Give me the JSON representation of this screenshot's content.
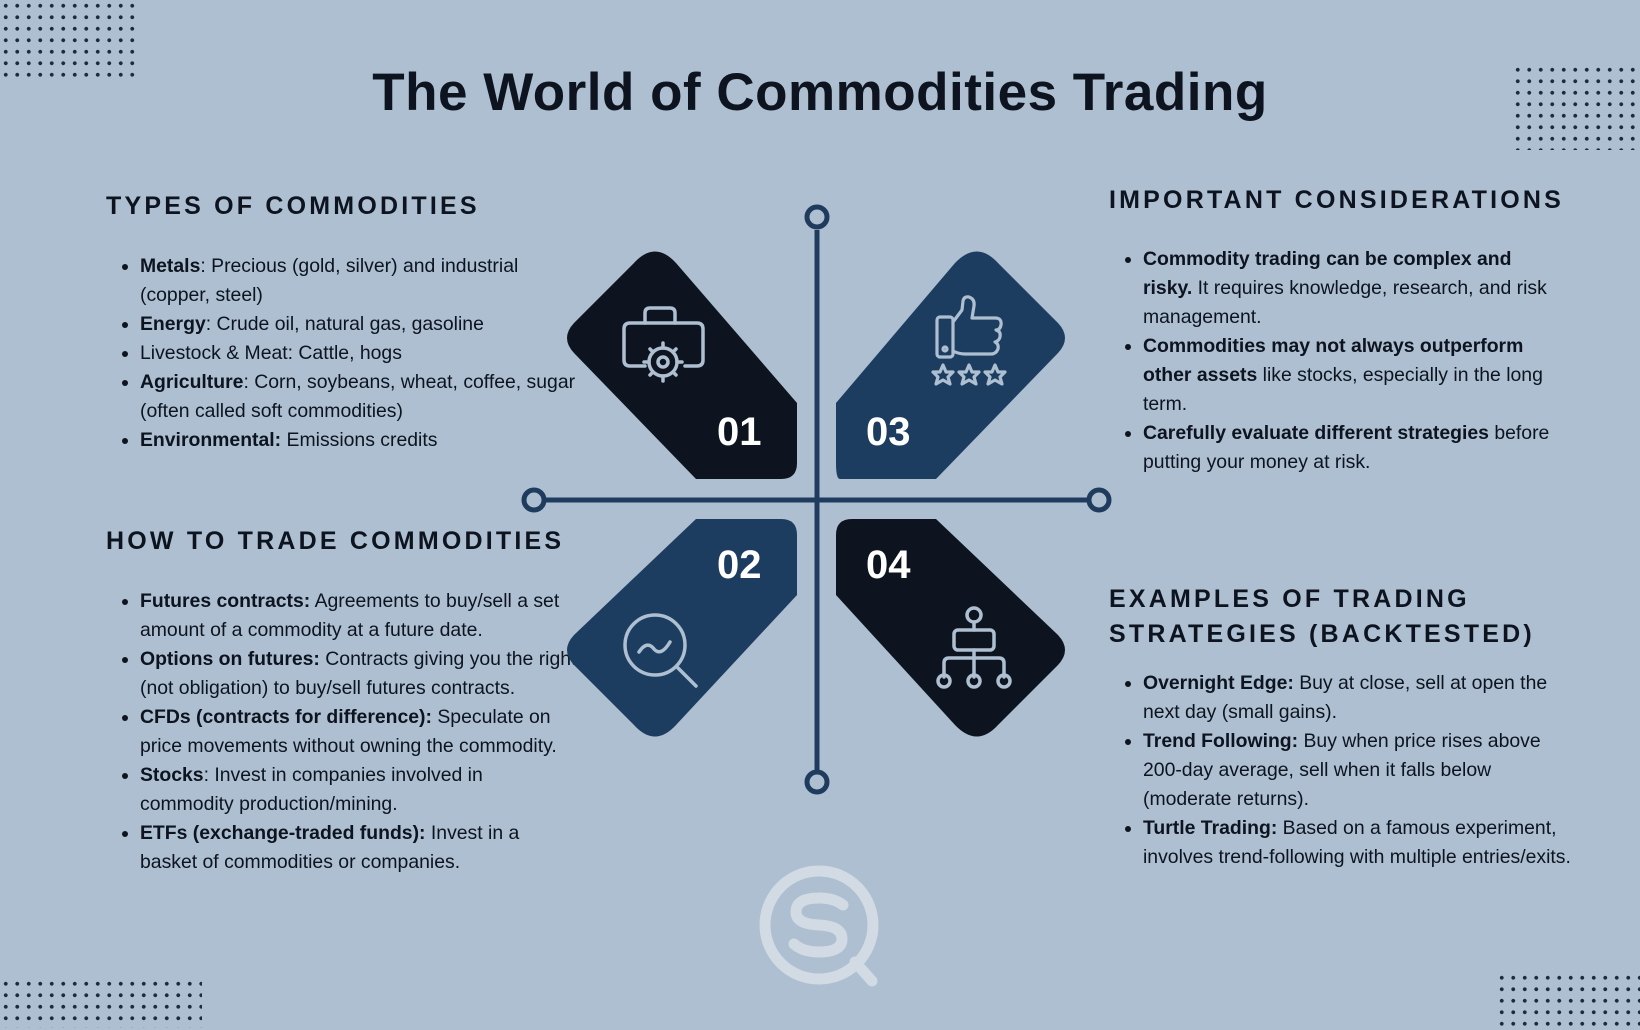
{
  "title": "The World of Commodities Trading",
  "sections": {
    "types": {
      "title": "TYPES OF COMMODITIES",
      "items": [
        {
          "bold": "Metals",
          "text": ": Precious (gold, silver) and industrial (copper, steel)"
        },
        {
          "bold": "Energy",
          "text": ": Crude oil, natural gas, gasoline"
        },
        {
          "bold": "",
          "text": "Livestock & Meat: Cattle, hogs"
        },
        {
          "bold": "Agriculture",
          "text": ": Corn, soybeans, wheat, coffee, sugar (often called soft commodities)"
        },
        {
          "bold": "Environmental:",
          "text": " Emissions credits"
        }
      ]
    },
    "trade": {
      "title": "HOW TO TRADE COMMODITIES",
      "items": [
        {
          "bold": "Futures contracts:",
          "text": " Agreements to buy/sell a set amount of a commodity at a future date."
        },
        {
          "bold": "Options on futures:",
          "text": " Contracts giving you the right (not obligation) to buy/sell futures contracts."
        },
        {
          "bold": "CFDs (contracts for difference):",
          "text": " Speculate on price movements without owning the commodity."
        },
        {
          "bold": "Stocks",
          "text": ": Invest in companies involved in commodity production/mining."
        },
        {
          "bold": "ETFs (exchange-traded funds):",
          "text": " Invest in a basket of commodities or companies."
        }
      ]
    },
    "considerations": {
      "title": "IMPORTANT CONSIDERATIONS",
      "items": [
        {
          "bold": "Commodity trading can be complex and risky.",
          "text": " It requires knowledge, research, and risk management."
        },
        {
          "bold": "Commodities may not always outperform other assets",
          "text": " like stocks, especially in the long term."
        },
        {
          "bold": "Carefully evaluate different strategies",
          "text": " before putting your money at risk."
        }
      ]
    },
    "examples": {
      "title": "EXAMPLES OF TRADING STRATEGIES (BACKTESTED)",
      "items": [
        {
          "bold": "Overnight Edge:",
          "text": " Buy at close, sell at open the next day (small gains)."
        },
        {
          "bold": "Trend Following:",
          "text": " Buy when price rises above 200-day average, sell when it falls below (moderate returns)."
        },
        {
          "bold": "Turtle Trading:",
          "text": " Based on a famous experiment, involves trend-following with multiple entries/exits."
        }
      ]
    }
  },
  "diagram": {
    "tiles": [
      {
        "number": "01",
        "icon": "briefcase-gear-icon",
        "color": "#0d1420"
      },
      {
        "number": "02",
        "icon": "magnifier-chart-icon",
        "color": "#1c3d60"
      },
      {
        "number": "03",
        "icon": "thumbs-up-stars-icon",
        "color": "#1c3d60"
      },
      {
        "number": "04",
        "icon": "hierarchy-icon",
        "color": "#0d1420"
      }
    ],
    "line_color": "#1f3c5e"
  },
  "logo": {
    "icon": "sq-logo-icon",
    "color": "#d2dbe4"
  }
}
